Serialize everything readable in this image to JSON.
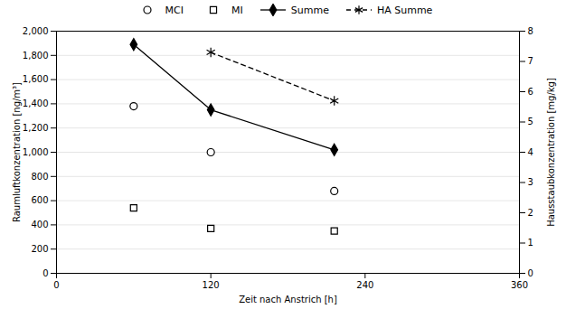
{
  "chart_data": {
    "type": "line",
    "title": "",
    "xlabel": "Zeit nach Anstrich [h]",
    "ylabel": "Raumluftkonzentration [ng/m³]",
    "y2label": "Hausstaubkonzentration [mg/kg]",
    "x": [
      60,
      120,
      216
    ],
    "xlim": [
      0,
      360
    ],
    "xticks": [
      0,
      120,
      240,
      360
    ],
    "ylim": [
      0,
      2000
    ],
    "yticks": [
      0,
      200,
      400,
      600,
      800,
      1000,
      1200,
      1400,
      1600,
      1800,
      2000
    ],
    "y2lim": [
      0,
      8
    ],
    "y2ticks": [
      0,
      1,
      2,
      3,
      4,
      5,
      6,
      7,
      8
    ],
    "grid": "y",
    "series": [
      {
        "name": "MCI",
        "type": "scatter",
        "marker": "circle_open",
        "line_style": "none",
        "color": "#000000",
        "values": [
          1380,
          1000,
          680
        ]
      },
      {
        "name": "MI",
        "type": "scatter",
        "marker": "square_open",
        "line_style": "none",
        "color": "#000000",
        "values": [
          540,
          370,
          350
        ]
      },
      {
        "name": "Summe",
        "type": "line",
        "marker": "diamond",
        "line_style": "solid",
        "color": "#000000",
        "values": [
          1890,
          1350,
          1020
        ]
      },
      {
        "name": "HA Summe",
        "type": "line",
        "marker": "asterisk",
        "line_style": "dashed",
        "color": "#000000",
        "axis": "y2",
        "values": [
          null,
          7.3,
          5.7
        ]
      }
    ]
  }
}
